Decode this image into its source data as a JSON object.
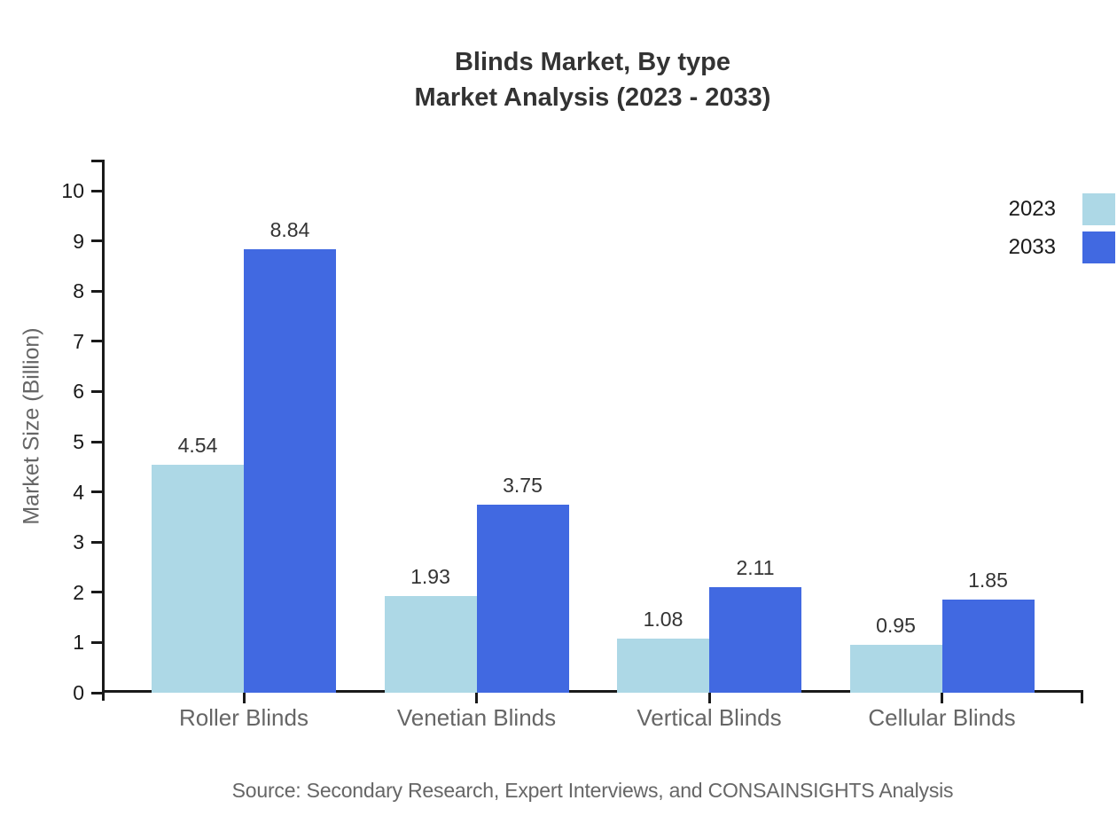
{
  "title": {
    "line1": "Blinds Market, By type",
    "line2": "Market Analysis (2023 - 2033)"
  },
  "source_note": "Source: Secondary Research, Expert Interviews, and CONSAINSIGHTS Analysis",
  "chart_data": {
    "type": "bar",
    "title": "Blinds Market, By type Market Analysis (2023 - 2033)",
    "categories": [
      "Roller Blinds",
      "Venetian Blinds",
      "Vertical Blinds",
      "Cellular Blinds"
    ],
    "series": [
      {
        "name": "2023",
        "color": "#ADD8E6",
        "values": [
          4.54,
          1.93,
          1.08,
          0.95
        ]
      },
      {
        "name": "2033",
        "color": "#4169E1",
        "values": [
          8.84,
          3.75,
          2.11,
          1.85
        ]
      }
    ],
    "xlabel": "",
    "ylabel": "Market Size (Billion)",
    "yticks": [
      0,
      1,
      2,
      3,
      4,
      5,
      6,
      7,
      8,
      9,
      10
    ],
    "ylim": [
      0,
      10.6
    ],
    "grid": false,
    "legend_position": "top-right",
    "value_labels": true,
    "axis_color": "#1a1a1a",
    "tick_label_color": "#1a1a1a",
    "category_label_color": "#666666",
    "value_label_color": "#333333"
  }
}
